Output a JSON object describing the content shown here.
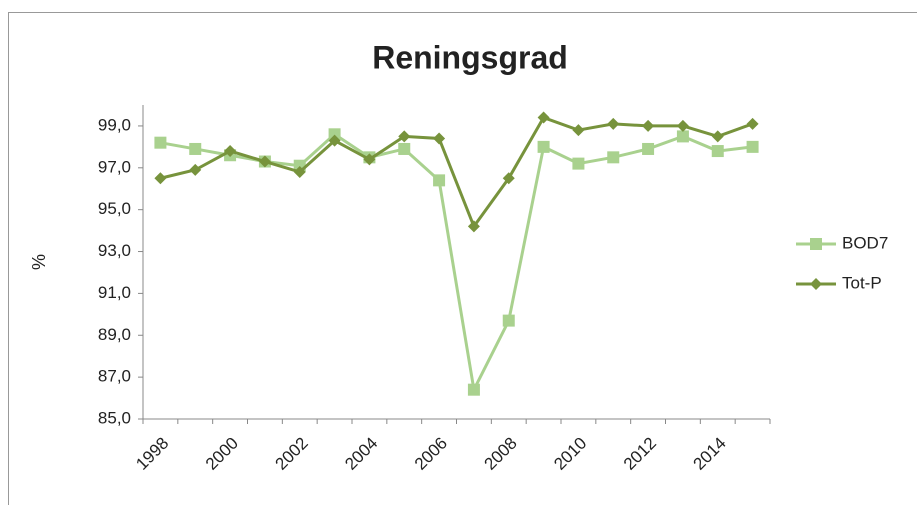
{
  "chart_data": {
    "type": "line",
    "title": "Reningsgrad",
    "y_label": "%",
    "categories": [
      "1998",
      null,
      "2000",
      null,
      "2002",
      null,
      "2004",
      null,
      "2006",
      null,
      "2008",
      null,
      "2010",
      null,
      "2012",
      null,
      "2014",
      null
    ],
    "series": [
      {
        "name": "BOD7",
        "color": "#a9d18e",
        "marker": "square",
        "values": [
          98.2,
          97.9,
          97.6,
          97.3,
          97.1,
          98.6,
          97.5,
          97.9,
          96.4,
          86.4,
          89.7,
          98.0,
          97.2,
          97.5,
          97.9,
          98.5,
          97.8,
          98.0
        ]
      },
      {
        "name": "Tot-P",
        "color": "#77933c",
        "marker": "diamond",
        "values": [
          96.5,
          96.9,
          97.8,
          97.3,
          96.8,
          98.3,
          97.4,
          98.5,
          98.4,
          94.2,
          96.5,
          99.4,
          98.8,
          99.1,
          99.0,
          99.0,
          98.5,
          99.1
        ]
      }
    ],
    "ylim": [
      85,
      100
    ],
    "yticks": [
      {
        "value": 85,
        "label": "85,0"
      },
      {
        "value": 87,
        "label": "87,0"
      },
      {
        "value": 89,
        "label": "89,0"
      },
      {
        "value": 91,
        "label": "91,0"
      },
      {
        "value": 93,
        "label": "93,0"
      },
      {
        "value": 95,
        "label": "95,0"
      },
      {
        "value": 97,
        "label": "97,0"
      },
      {
        "value": 99,
        "label": "99,0"
      }
    ],
    "grid": false,
    "legend": "right"
  }
}
